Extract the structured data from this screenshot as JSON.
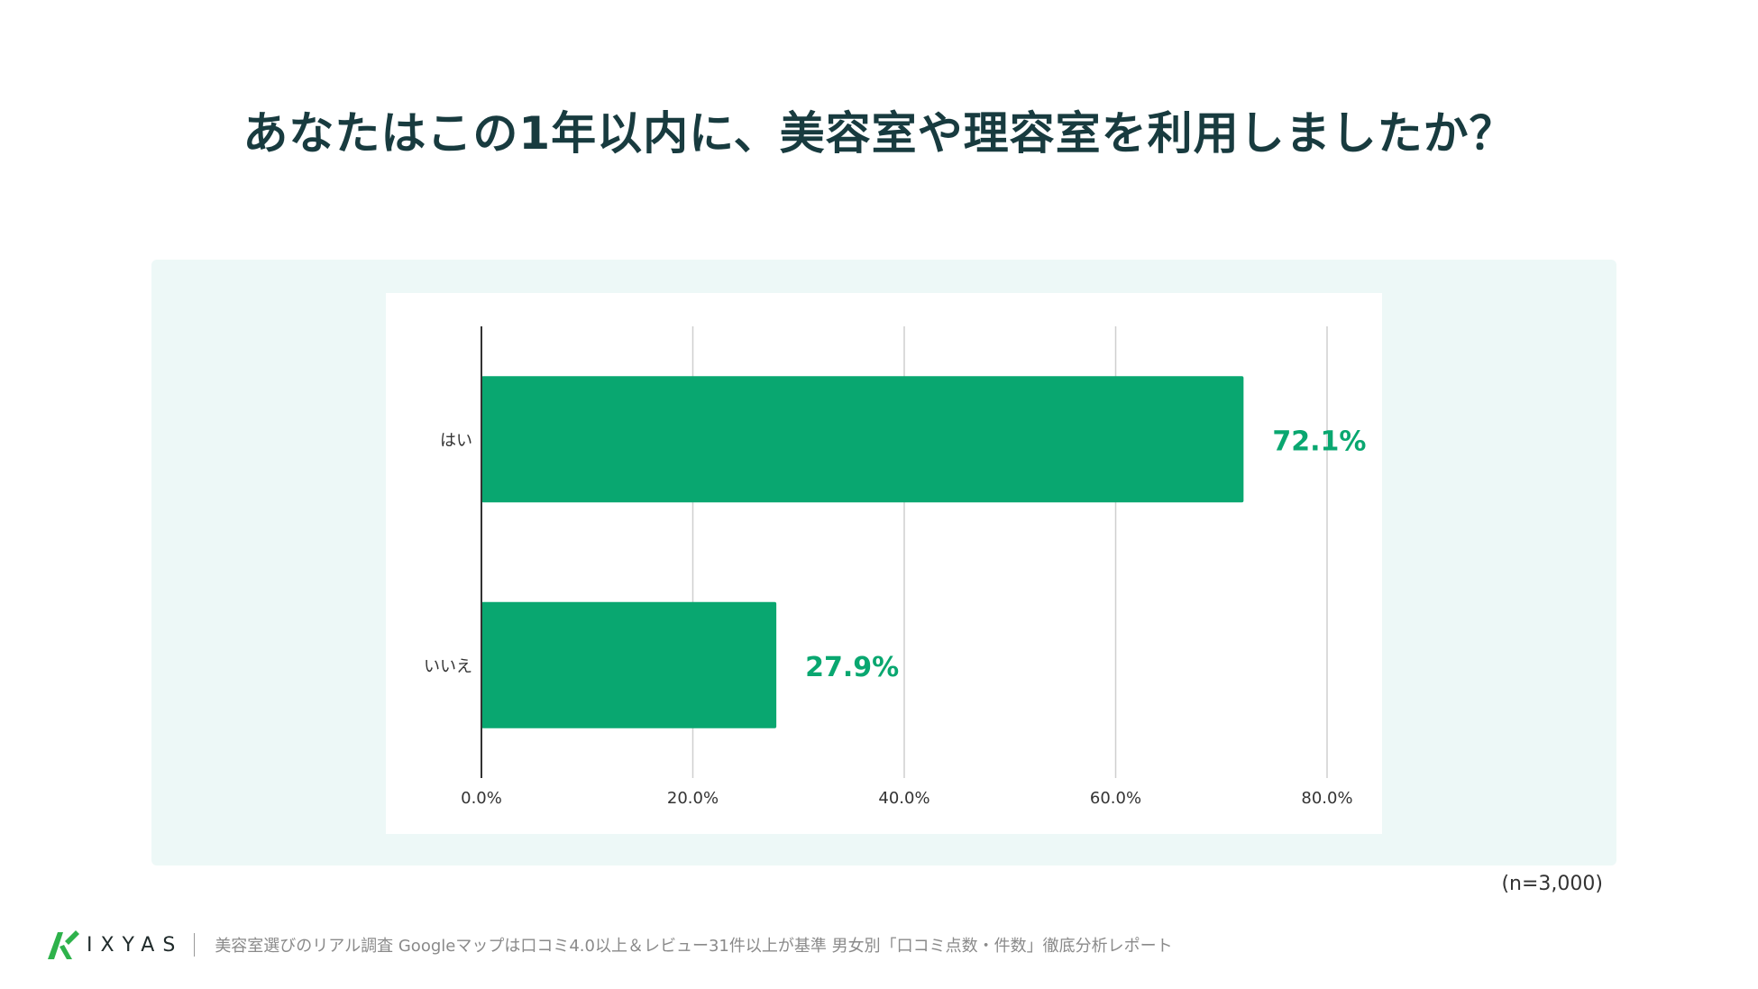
{
  "title": "あなたはこの1年以内に、美容室や理容室を利用しましたか？",
  "chart_data": {
    "type": "bar",
    "orientation": "horizontal",
    "categories": [
      "はい",
      "いいえ"
    ],
    "values": [
      72.1,
      27.9
    ],
    "value_labels": [
      "72.1%",
      "27.9%"
    ],
    "x_ticks": [
      "0.0%",
      "20.0%",
      "40.0%",
      "60.0%",
      "80.0%"
    ],
    "xlim": [
      0,
      80
    ],
    "grid": "vertical",
    "bar_color": "#09a770",
    "label_color": "#09a770"
  },
  "sample_size": "(n=3,000)",
  "footer": {
    "brand": "IXYAS",
    "report_title": "美容室選びのリアル調査 Googleマップは口コミ4.0以上＆レビュー31件以上が基準 男女別「口コミ点数・件数」徹底分析レポート"
  },
  "colors": {
    "title": "#183b3f",
    "panel_background": "#edf8f7",
    "brand_green": "#2eb24b"
  }
}
